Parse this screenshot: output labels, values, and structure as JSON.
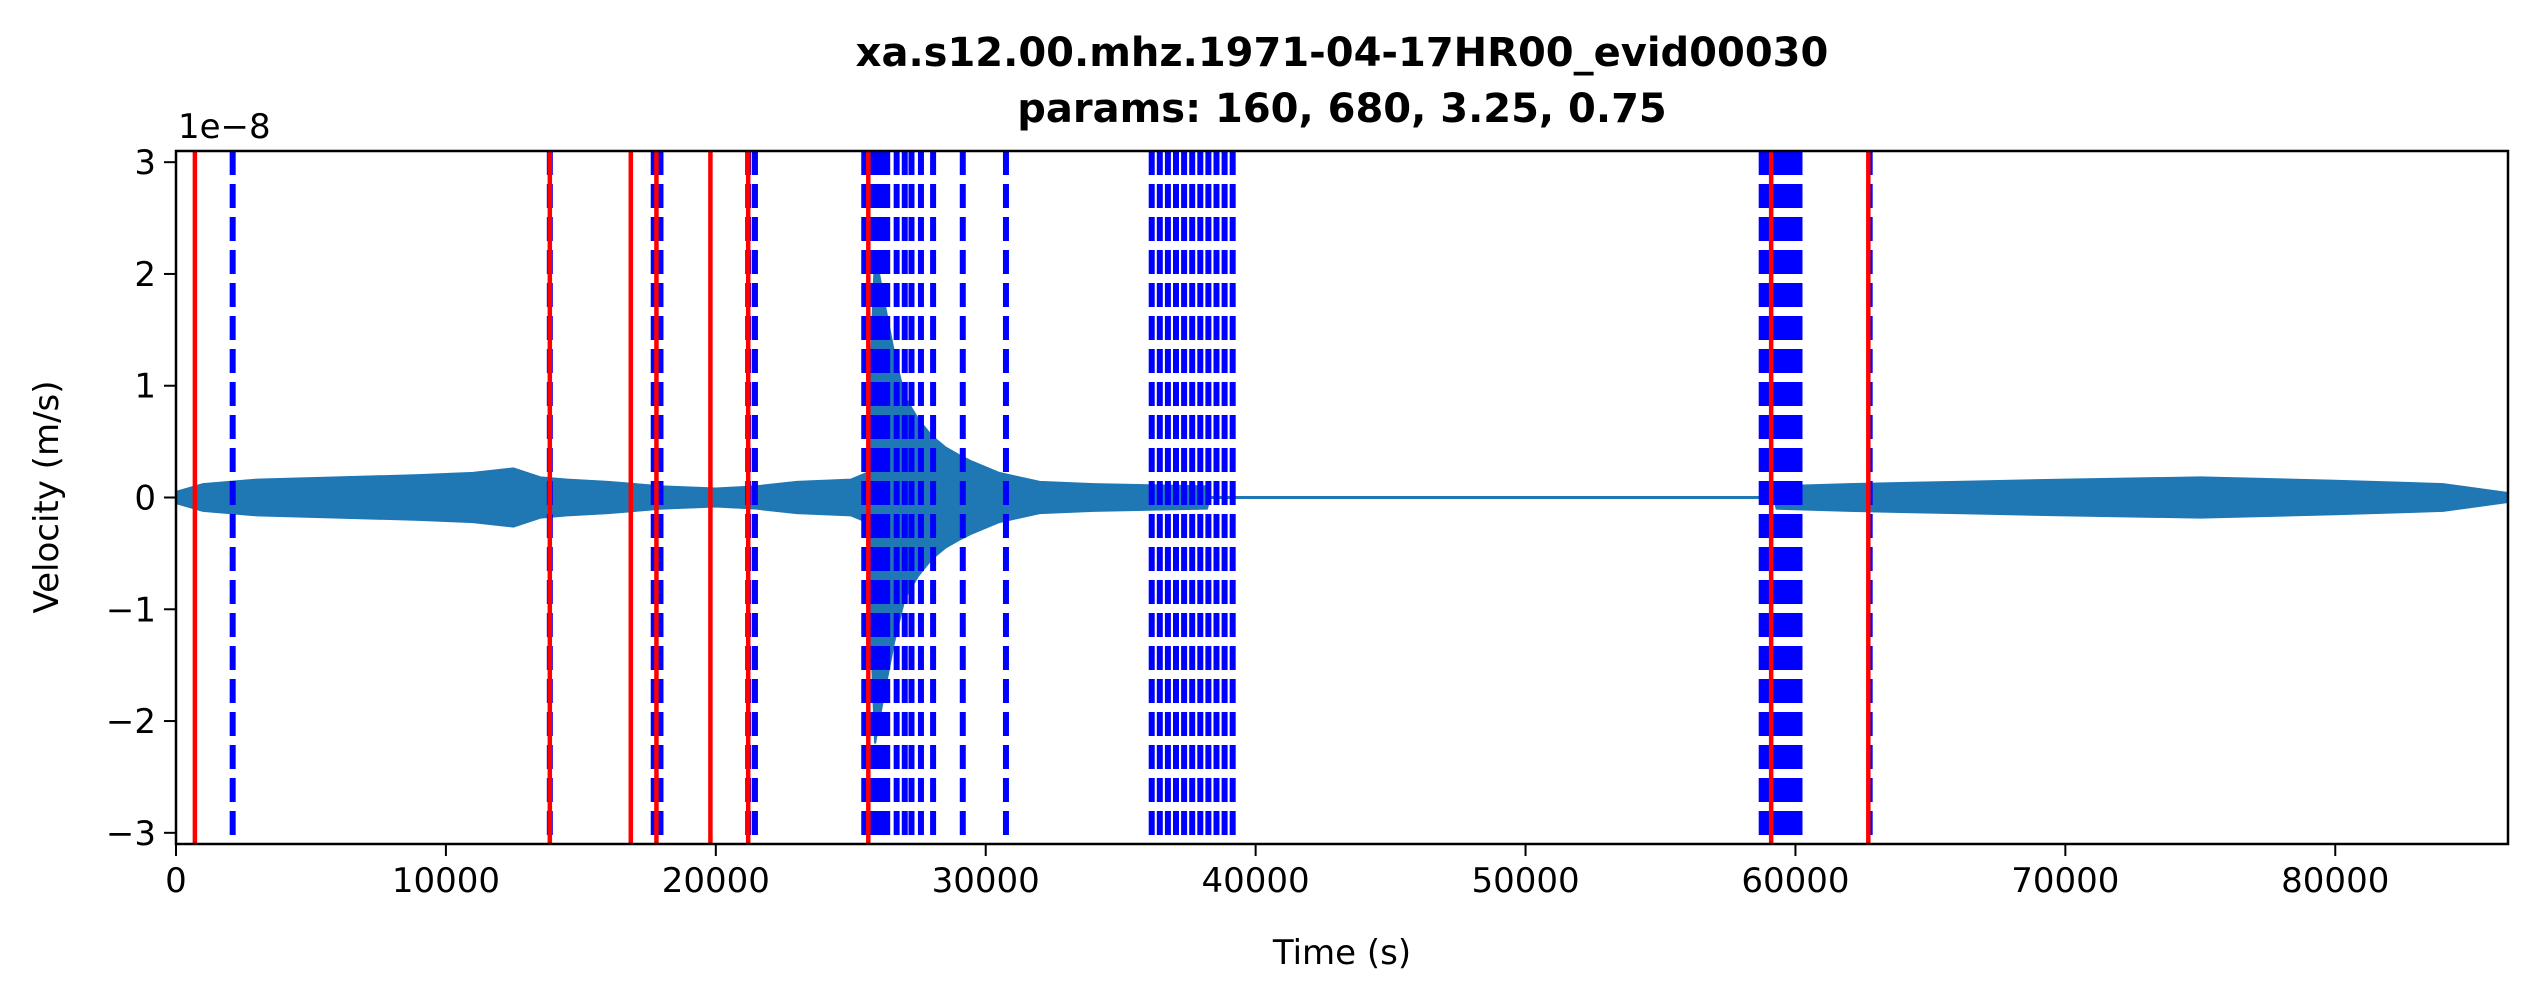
{
  "chart_data": {
    "type": "line",
    "title_line1": "xa.s12.00.mhz.1971-04-17HR00_evid00030",
    "title_line2": "params: 160, 680, 3.25, 0.75",
    "xlabel": "Time (s)",
    "ylabel": "Velocity (m/s)",
    "y_offset_label": "1e−8",
    "xlim": [
      0,
      86400
    ],
    "ylim": [
      -3.1,
      3.1
    ],
    "x_ticks": [
      {
        "value": 0,
        "label": "0"
      },
      {
        "value": 10000,
        "label": "10000"
      },
      {
        "value": 20000,
        "label": "20000"
      },
      {
        "value": 30000,
        "label": "30000"
      },
      {
        "value": 40000,
        "label": "40000"
      },
      {
        "value": 50000,
        "label": "50000"
      },
      {
        "value": 60000,
        "label": "60000"
      },
      {
        "value": 70000,
        "label": "70000"
      },
      {
        "value": 80000,
        "label": "80000"
      }
    ],
    "y_ticks": [
      {
        "value": 3,
        "label": "3"
      },
      {
        "value": 2,
        "label": "2"
      },
      {
        "value": 1,
        "label": "1"
      },
      {
        "value": 0,
        "label": "0"
      },
      {
        "value": -1,
        "label": "−1"
      },
      {
        "value": -2,
        "label": "−2"
      },
      {
        "value": -3,
        "label": "−3"
      }
    ],
    "grid": false,
    "colors": {
      "signal": "#1f77b4",
      "trigger_on": "#ff0000",
      "detection": "#0000ff"
    },
    "signal_envelope": [
      [
        0,
        0.05
      ],
      [
        1000,
        0.12
      ],
      [
        3000,
        0.16
      ],
      [
        6000,
        0.18
      ],
      [
        9000,
        0.2
      ],
      [
        11000,
        0.22
      ],
      [
        12500,
        0.26
      ],
      [
        13500,
        0.18
      ],
      [
        14500,
        0.16
      ],
      [
        16000,
        0.14
      ],
      [
        18000,
        0.1
      ],
      [
        20000,
        0.08
      ],
      [
        21500,
        0.1
      ],
      [
        23000,
        0.14
      ],
      [
        25000,
        0.16
      ],
      [
        25600,
        0.22
      ],
      [
        25900,
        2.2
      ],
      [
        26200,
        1.8
      ],
      [
        26600,
        1.3
      ],
      [
        27000,
        0.9
      ],
      [
        27500,
        0.7
      ],
      [
        28000,
        0.55
      ],
      [
        28500,
        0.45
      ],
      [
        29000,
        0.38
      ],
      [
        29500,
        0.32
      ],
      [
        30500,
        0.22
      ],
      [
        32000,
        0.14
      ],
      [
        34000,
        0.12
      ],
      [
        36000,
        0.11
      ],
      [
        38200,
        0.1
      ],
      [
        38300,
        0.0
      ],
      [
        59200,
        0.0
      ],
      [
        59300,
        0.1
      ],
      [
        62000,
        0.12
      ],
      [
        66000,
        0.14
      ],
      [
        70000,
        0.16
      ],
      [
        75000,
        0.18
      ],
      [
        80000,
        0.15
      ],
      [
        84000,
        0.12
      ],
      [
        86400,
        0.04
      ]
    ],
    "trigger_lines": [
      700,
      16850,
      19800,
      25650,
      59100,
      62700,
      13850,
      17800,
      21200
    ],
    "detection_lines": [
      2100,
      13850,
      17700,
      17950,
      21200,
      21450,
      25500,
      25650,
      25800,
      25950,
      26100,
      26250,
      26350,
      26700,
      27000,
      27250,
      27600,
      28050,
      29150,
      30750,
      36150,
      36450,
      36750,
      37050,
      37350,
      37650,
      37950,
      38250,
      38550,
      38850,
      39150,
      58750,
      58950,
      59150,
      59350,
      59550,
      59750,
      59950,
      60150,
      62750
    ]
  }
}
